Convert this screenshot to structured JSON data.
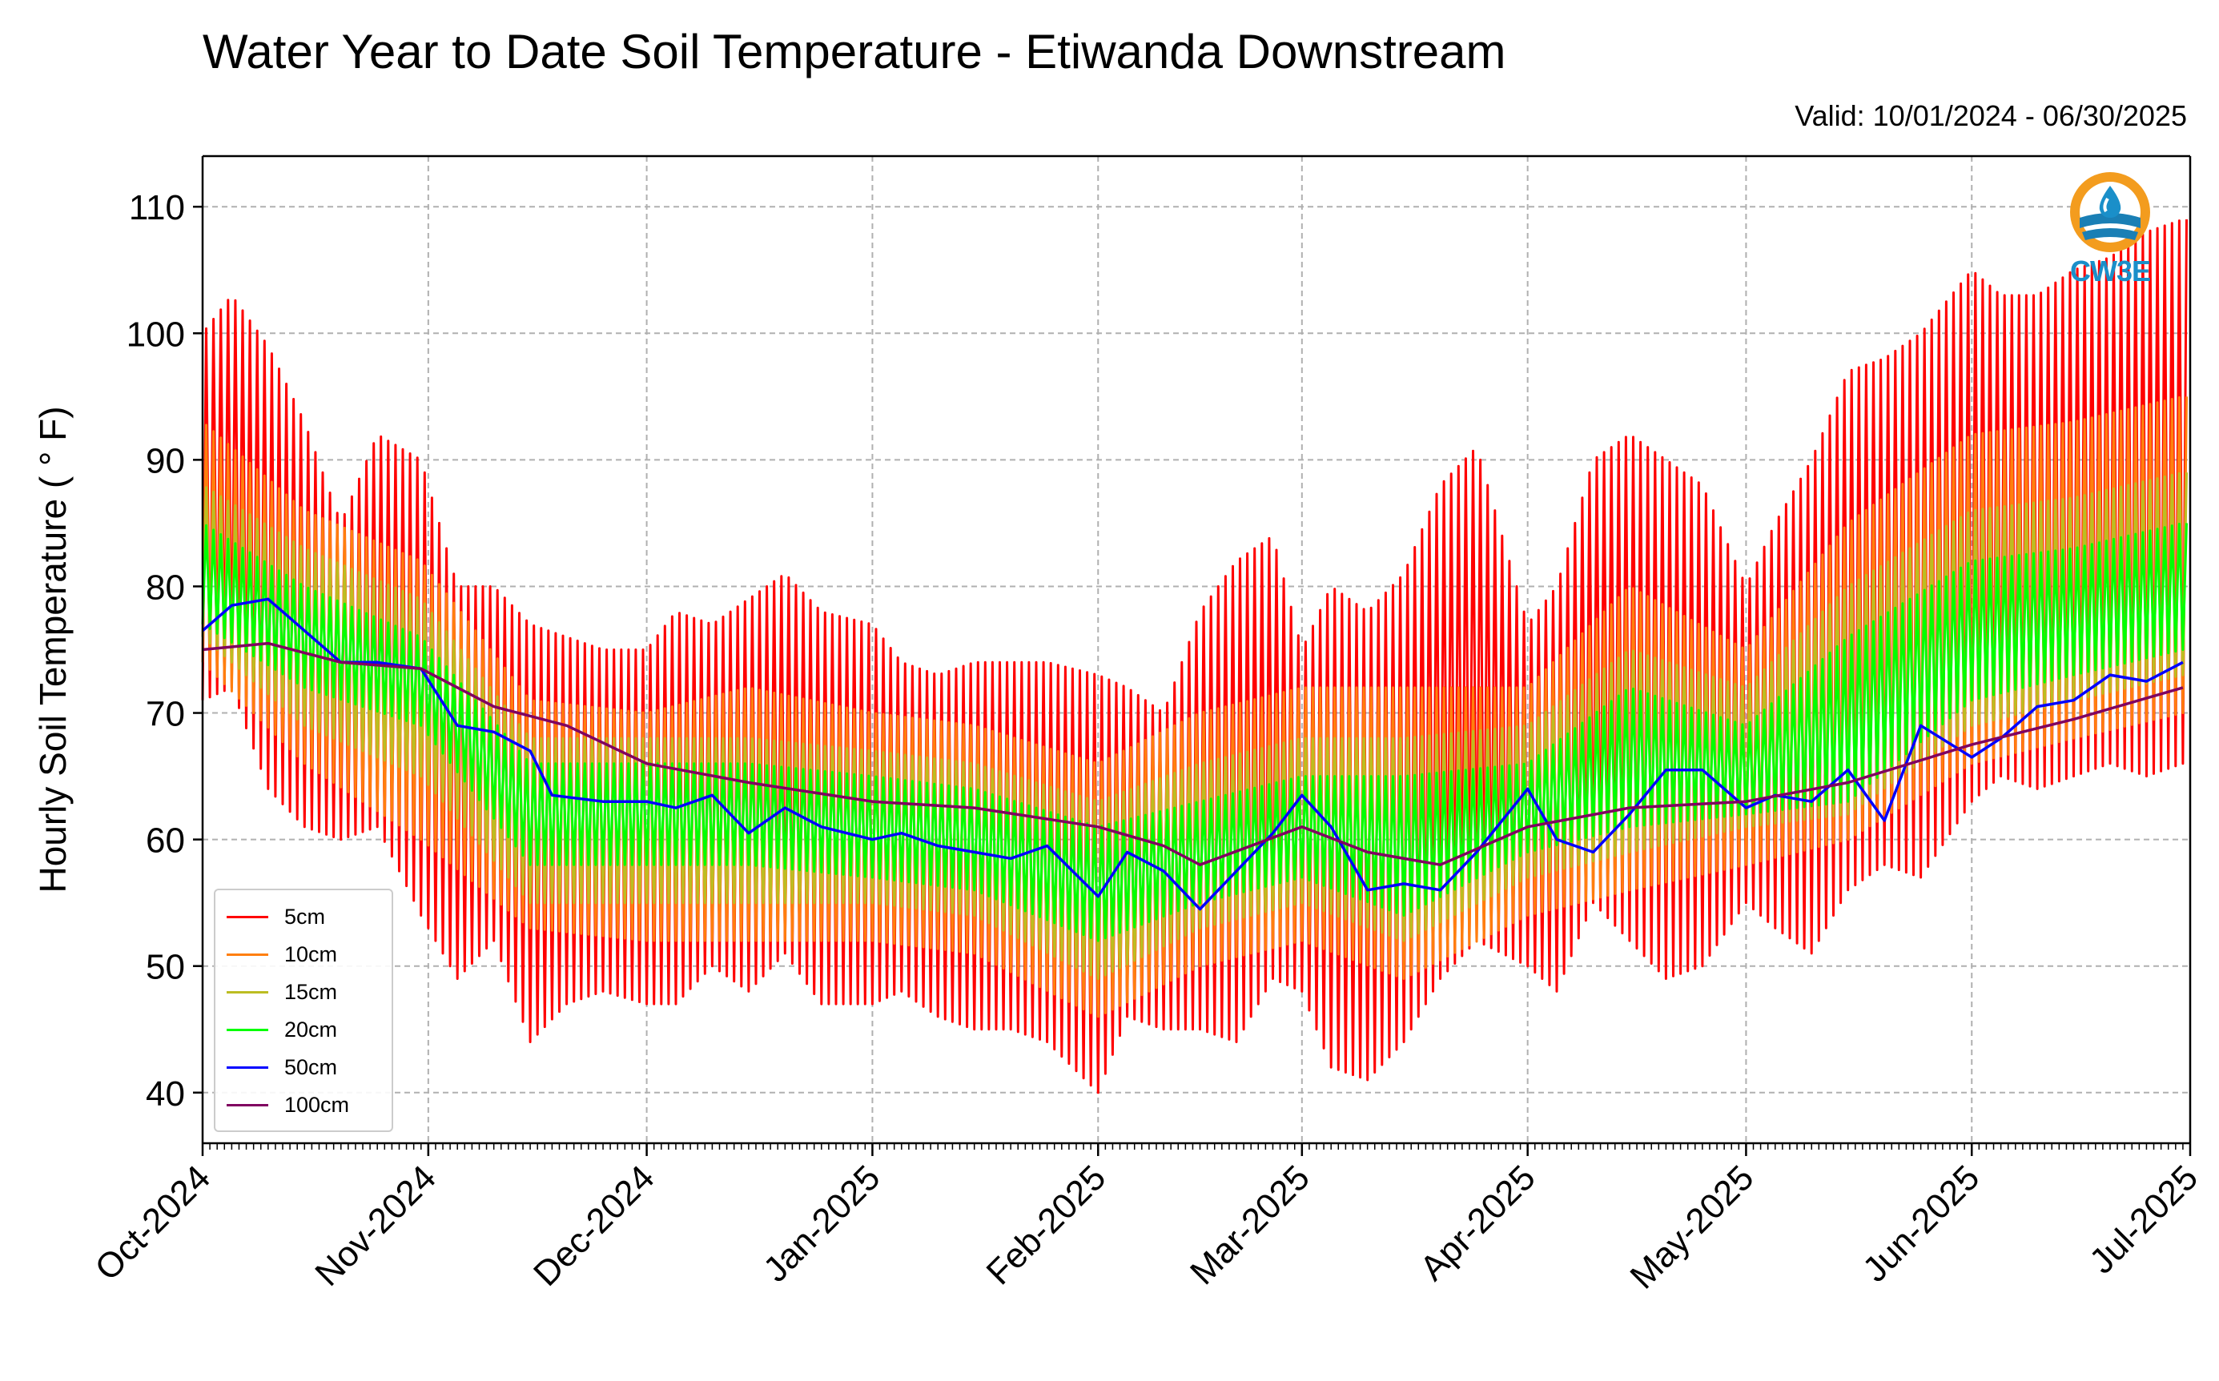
{
  "title": "Water Year to Date Soil Temperature - Etiwanda Downstream",
  "valid_text": "Valid: 10/01/2024 - 06/30/2025",
  "logo": {
    "text": "CW3E",
    "icon": "water-drop-logo-icon"
  },
  "colors": {
    "5cm": "#ff0000",
    "10cm": "#ff7f0e",
    "15cm": "#bcbd22",
    "20cm": "#00ff00",
    "50cm": "#0000ff",
    "100cm": "#800060",
    "grid": "#b0b0b0"
  },
  "chart_data": {
    "type": "line",
    "title": "Water Year to Date Soil Temperature - Etiwanda Downstream",
    "ylabel": "Hourly Soil Temperature ( ° F)",
    "xlabel": "",
    "ylim": [
      36,
      114
    ],
    "yticks": [
      40,
      50,
      60,
      70,
      80,
      90,
      100,
      110
    ],
    "xlim": [
      "2024-10-01",
      "2025-07-01"
    ],
    "xtick_labels": [
      "Oct-2024",
      "Nov-2024",
      "Dec-2024",
      "Jan-2025",
      "Feb-2025",
      "Mar-2025",
      "Apr-2025",
      "May-2025",
      "Jun-2025",
      "Jul-2025"
    ],
    "grid": true,
    "legend_position": "lower-left",
    "series_note": "5, 10, 15 and 20 cm series vary diurnally between the daily minimum and maximum listed",
    "series": [
      {
        "name": "5cm",
        "x": [
          "2024-10-01",
          "2024-10-05",
          "2024-10-10",
          "2024-10-15",
          "2024-10-20",
          "2024-10-25",
          "2024-10-31",
          "2024-11-05",
          "2024-11-10",
          "2024-11-15",
          "2024-11-20",
          "2024-11-25",
          "2024-12-01",
          "2024-12-05",
          "2024-12-10",
          "2024-12-15",
          "2024-12-20",
          "2024-12-25",
          "2025-01-01",
          "2025-01-05",
          "2025-01-10",
          "2025-01-15",
          "2025-01-20",
          "2025-01-25",
          "2025-02-01",
          "2025-02-05",
          "2025-02-10",
          "2025-02-15",
          "2025-02-20",
          "2025-02-25",
          "2025-03-01",
          "2025-03-05",
          "2025-03-10",
          "2025-03-15",
          "2025-03-20",
          "2025-03-25",
          "2025-04-01",
          "2025-04-05",
          "2025-04-10",
          "2025-04-15",
          "2025-04-20",
          "2025-04-25",
          "2025-05-01",
          "2025-05-05",
          "2025-05-10",
          "2025-05-15",
          "2025-05-20",
          "2025-05-25",
          "2025-06-01",
          "2025-06-05",
          "2025-06-10",
          "2025-06-15",
          "2025-06-20",
          "2025-06-25",
          "2025-06-30"
        ],
        "min": [
          71,
          72,
          64,
          61,
          60,
          61,
          54,
          49,
          52,
          44,
          47,
          48,
          47,
          47,
          50,
          48,
          51,
          47,
          47,
          48,
          46,
          45,
          45,
          44,
          40,
          46,
          45,
          45,
          44,
          49,
          48,
          42,
          41,
          44,
          49,
          52,
          50,
          48,
          55,
          52,
          49,
          50,
          55,
          53,
          51,
          56,
          58,
          57,
          63,
          65,
          64,
          65,
          66,
          65,
          66
        ],
        "max": [
          100,
          103,
          99,
          93,
          85,
          92,
          90,
          80,
          80,
          77,
          76,
          75,
          75,
          78,
          77,
          79,
          81,
          78,
          77,
          74,
          73,
          74,
          74,
          74,
          73,
          72,
          70,
          78,
          82,
          84,
          75,
          80,
          78,
          81,
          88,
          91,
          77,
          80,
          90,
          92,
          90,
          88,
          80,
          85,
          90,
          97,
          98,
          100,
          105,
          103,
          103,
          105,
          106,
          108,
          109
        ]
      },
      {
        "name": "10cm",
        "x": [
          "2024-10-01",
          "2024-10-15",
          "2024-10-31",
          "2024-11-15",
          "2024-12-01",
          "2024-12-15",
          "2025-01-01",
          "2025-01-15",
          "2025-02-01",
          "2025-02-15",
          "2025-03-01",
          "2025-03-15",
          "2025-04-01",
          "2025-04-15",
          "2025-05-01",
          "2025-05-15",
          "2025-06-01",
          "2025-06-15",
          "2025-06-30"
        ],
        "min": [
          74,
          66,
          60,
          53,
          52,
          52,
          52,
          51,
          46,
          50,
          52,
          49,
          54,
          56,
          58,
          60,
          66,
          68,
          70
        ],
        "max": [
          93,
          86,
          82,
          71,
          70,
          72,
          70,
          69,
          66,
          70,
          72,
          72,
          72,
          80,
          75,
          85,
          92,
          93,
          95
        ]
      },
      {
        "name": "15cm",
        "x": [
          "2024-10-01",
          "2024-10-15",
          "2024-10-31",
          "2024-11-15",
          "2024-12-01",
          "2024-12-15",
          "2025-01-01",
          "2025-01-15",
          "2025-02-01",
          "2025-02-15",
          "2025-03-01",
          "2025-03-15",
          "2025-04-01",
          "2025-04-15",
          "2025-05-01",
          "2025-05-15",
          "2025-06-01",
          "2025-06-15",
          "2025-06-30"
        ],
        "min": [
          76,
          69,
          65,
          55,
          55,
          55,
          55,
          54,
          49,
          53,
          55,
          52,
          57,
          59,
          61,
          62,
          69,
          71,
          73
        ],
        "max": [
          88,
          83,
          79,
          68,
          68,
          68,
          67,
          66,
          63,
          66,
          68,
          68,
          69,
          75,
          72,
          80,
          86,
          87,
          89
        ]
      },
      {
        "name": "20cm",
        "x": [
          "2024-10-01",
          "2024-10-15",
          "2024-10-31",
          "2024-11-15",
          "2024-12-01",
          "2024-12-15",
          "2025-01-01",
          "2025-01-15",
          "2025-02-01",
          "2025-02-15",
          "2025-03-01",
          "2025-03-15",
          "2025-04-01",
          "2025-04-15",
          "2025-05-01",
          "2025-05-15",
          "2025-06-01",
          "2025-06-15",
          "2025-06-30"
        ],
        "min": [
          77,
          72,
          69,
          58,
          58,
          58,
          57,
          56,
          52,
          55,
          57,
          54,
          59,
          61,
          62,
          63,
          71,
          73,
          75
        ],
        "max": [
          85,
          80,
          76,
          66,
          66,
          66,
          65,
          64,
          61,
          63,
          65,
          65,
          66,
          72,
          69,
          76,
          82,
          83,
          85
        ]
      },
      {
        "name": "50cm",
        "x": [
          "2024-10-01",
          "2024-10-05",
          "2024-10-10",
          "2024-10-15",
          "2024-10-20",
          "2024-10-25",
          "2024-10-31",
          "2024-11-05",
          "2024-11-10",
          "2024-11-15",
          "2024-11-18",
          "2024-11-25",
          "2024-12-01",
          "2024-12-05",
          "2024-12-10",
          "2024-12-15",
          "2024-12-20",
          "2024-12-25",
          "2025-01-01",
          "2025-01-05",
          "2025-01-10",
          "2025-01-15",
          "2025-01-20",
          "2025-01-25",
          "2025-02-01",
          "2025-02-05",
          "2025-02-10",
          "2025-02-15",
          "2025-02-20",
          "2025-02-25",
          "2025-03-01",
          "2025-03-05",
          "2025-03-10",
          "2025-03-15",
          "2025-03-20",
          "2025-03-25",
          "2025-04-01",
          "2025-04-05",
          "2025-04-10",
          "2025-04-15",
          "2025-04-20",
          "2025-04-25",
          "2025-05-01",
          "2025-05-05",
          "2025-05-10",
          "2025-05-15",
          "2025-05-20",
          "2025-05-25",
          "2025-06-01",
          "2025-06-05",
          "2025-06-10",
          "2025-06-15",
          "2025-06-20",
          "2025-06-25",
          "2025-06-30"
        ],
        "y": [
          76.5,
          78.5,
          79,
          76.5,
          74,
          74,
          73.5,
          69,
          68.5,
          67,
          63.5,
          63,
          63,
          62.5,
          63.5,
          60.5,
          62.5,
          61,
          60,
          60.5,
          59.5,
          59,
          58.5,
          59.5,
          55.5,
          59,
          57.5,
          54.5,
          57.5,
          60.5,
          63.5,
          61,
          56,
          56.5,
          56,
          59,
          64,
          60,
          59,
          62,
          65.5,
          65.5,
          62.5,
          63.5,
          63,
          65.5,
          61.5,
          69,
          66.5,
          68,
          70.5,
          71,
          73,
          72.5,
          74
        ]
      },
      {
        "name": "100cm",
        "x": [
          "2024-10-01",
          "2024-10-10",
          "2024-10-20",
          "2024-10-31",
          "2024-11-10",
          "2024-11-20",
          "2024-12-01",
          "2024-12-15",
          "2025-01-01",
          "2025-01-15",
          "2025-02-01",
          "2025-02-10",
          "2025-02-15",
          "2025-03-01",
          "2025-03-10",
          "2025-03-20",
          "2025-04-01",
          "2025-04-15",
          "2025-05-01",
          "2025-05-15",
          "2025-06-01",
          "2025-06-15",
          "2025-06-30"
        ],
        "y": [
          75,
          75.5,
          74,
          73.5,
          70.5,
          69,
          66,
          64.5,
          63,
          62.5,
          61,
          59.5,
          58,
          61,
          59,
          58,
          61,
          62.5,
          63,
          64.5,
          67.5,
          69.5,
          72
        ]
      }
    ]
  }
}
